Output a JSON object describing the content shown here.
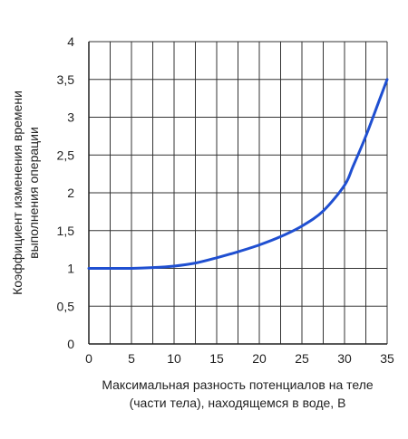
{
  "chart_data": {
    "type": "line",
    "x_tick_labels": [
      "0",
      "5",
      "10",
      "15",
      "20",
      "25",
      "30",
      "35"
    ],
    "y_tick_labels": [
      "0",
      "0,5",
      "1",
      "1,5",
      "2",
      "2,5",
      "3",
      "3,5",
      "4"
    ],
    "xlabel_lines": [
      "Максимальная разность потенциалов на теле",
      "(части тела), находящемся в воде, В"
    ],
    "ylabel_lines": [
      "Коэффициент изменения времени",
      "выполнения операции"
    ],
    "xlim": [
      0,
      35
    ],
    "ylim": [
      0,
      4
    ],
    "grid": true,
    "series": [
      {
        "color": "#1f4fd1",
        "x": [
          0,
          2.5,
          5,
          7.5,
          10,
          12.5,
          15,
          17.5,
          20,
          22.5,
          25,
          27.5,
          30,
          31,
          32.5,
          34,
          35
        ],
        "y": [
          1.0,
          1.0,
          1.0,
          1.01,
          1.03,
          1.07,
          1.14,
          1.22,
          1.31,
          1.42,
          1.56,
          1.76,
          2.1,
          2.35,
          2.75,
          3.2,
          3.5
        ]
      }
    ]
  }
}
